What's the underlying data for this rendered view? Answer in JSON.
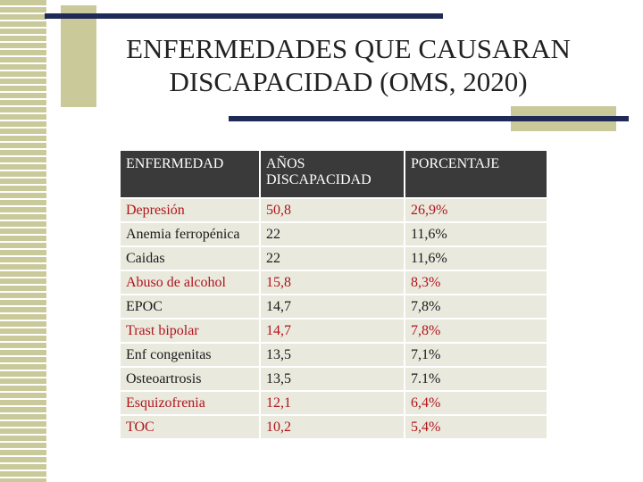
{
  "slide": {
    "title_line1": "ENFERMEDADES QUE CAUSARAN",
    "title_line2": "DISCAPACIDAD (OMS, 2020)"
  },
  "table": {
    "headers": [
      "ENFERMEDAD",
      "AÑOS DISCAPACIDAD",
      "PORCENTAJE"
    ],
    "rows": [
      {
        "disease": "Depresión",
        "years": "50,8",
        "percent": "26,9%",
        "color": "red"
      },
      {
        "disease": "Anemia ferropénica",
        "years": "22",
        "percent": "11,6%",
        "color": "dark"
      },
      {
        "disease": "Caidas",
        "years": "22",
        "percent": "11,6%",
        "color": "dark"
      },
      {
        "disease": "Abuso de alcohol",
        "years": "15,8",
        "percent": "8,3%",
        "color": "red"
      },
      {
        "disease": "EPOC",
        "years": "14,7",
        "percent": "7,8%",
        "color": "dark"
      },
      {
        "disease": "Trast bipolar",
        "years": "14,7",
        "percent": "7,8%",
        "color": "red"
      },
      {
        "disease": "Enf congenitas",
        "years": "13,5",
        "percent": "7,1%",
        "color": "dark"
      },
      {
        "disease": "Osteoartrosis",
        "years": "13,5",
        "percent": "7.1%",
        "color": "dark"
      },
      {
        "disease": "Esquizofrenia",
        "years": "12,1",
        "percent": "6,4%",
        "color": "red"
      },
      {
        "disease": "TOC",
        "years": "10,2",
        "percent": "5,4%",
        "color": "red"
      }
    ]
  },
  "colors": {
    "accent_red": "#b1141b",
    "navy": "#1f2a57",
    "olive": "#c9c99a",
    "header_bg": "#3a3a3a",
    "cell_bg": "#e9e9de"
  }
}
